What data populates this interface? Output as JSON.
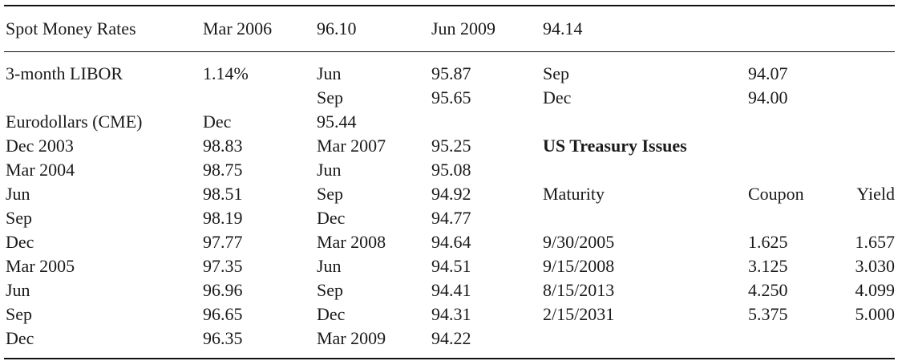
{
  "header": {
    "c1": "Spot Money Rates",
    "c2": "Mar 2006",
    "c3": "96.10",
    "c4": "Jun 2009",
    "c5": "94.14"
  },
  "rows": [
    {
      "c1": "3-month LIBOR",
      "c2": "1.14%",
      "c3": "Jun",
      "c4": "95.87",
      "c5": "Sep",
      "c6": "94.07",
      "c7": ""
    },
    {
      "c1": "",
      "c2": "",
      "c3": "Sep",
      "c4": "95.65",
      "c5": "Dec",
      "c6": "94.00",
      "c7": ""
    },
    {
      "c1": "Eurodollars (CME)",
      "c2": "Dec",
      "c3": "95.44",
      "c4": "",
      "c5": "",
      "c6": "",
      "c7": ""
    },
    {
      "c1": "Dec 2003",
      "c2": "98.83",
      "c3": "Mar 2007",
      "c4": "95.25",
      "c5": "US Treasury Issues",
      "c6": "",
      "c7": ""
    },
    {
      "c1": "Mar 2004",
      "c2": "98.75",
      "c3": "Jun",
      "c4": "95.08",
      "c5": "",
      "c6": "",
      "c7": ""
    },
    {
      "c1": "Jun",
      "c2": "98.51",
      "c3": "Sep",
      "c4": "94.92",
      "c5": "Maturity",
      "c6": "Coupon",
      "c7": "Yield"
    },
    {
      "c1": "Sep",
      "c2": "98.19",
      "c3": "Dec",
      "c4": "94.77",
      "c5": "",
      "c6": "",
      "c7": ""
    },
    {
      "c1": "Dec",
      "c2": "97.77",
      "c3": "Mar 2008",
      "c4": "94.64",
      "c5": "9/30/2005",
      "c6": "1.625",
      "c7": "1.657"
    },
    {
      "c1": "Mar 2005",
      "c2": "97.35",
      "c3": "Jun",
      "c4": "94.51",
      "c5": "9/15/2008",
      "c6": "3.125",
      "c7": "3.030"
    },
    {
      "c1": "Jun",
      "c2": "96.96",
      "c3": "Sep",
      "c4": "94.41",
      "c5": "8/15/2013",
      "c6": "4.250",
      "c7": "4.099"
    },
    {
      "c1": "Sep",
      "c2": "96.65",
      "c3": "Dec",
      "c4": "94.31",
      "c5": "2/15/2031",
      "c6": "5.375",
      "c7": "5.000"
    },
    {
      "c1": "Dec",
      "c2": "96.35",
      "c3": "Mar 2009",
      "c4": "94.22",
      "c5": "",
      "c6": "",
      "c7": ""
    }
  ]
}
